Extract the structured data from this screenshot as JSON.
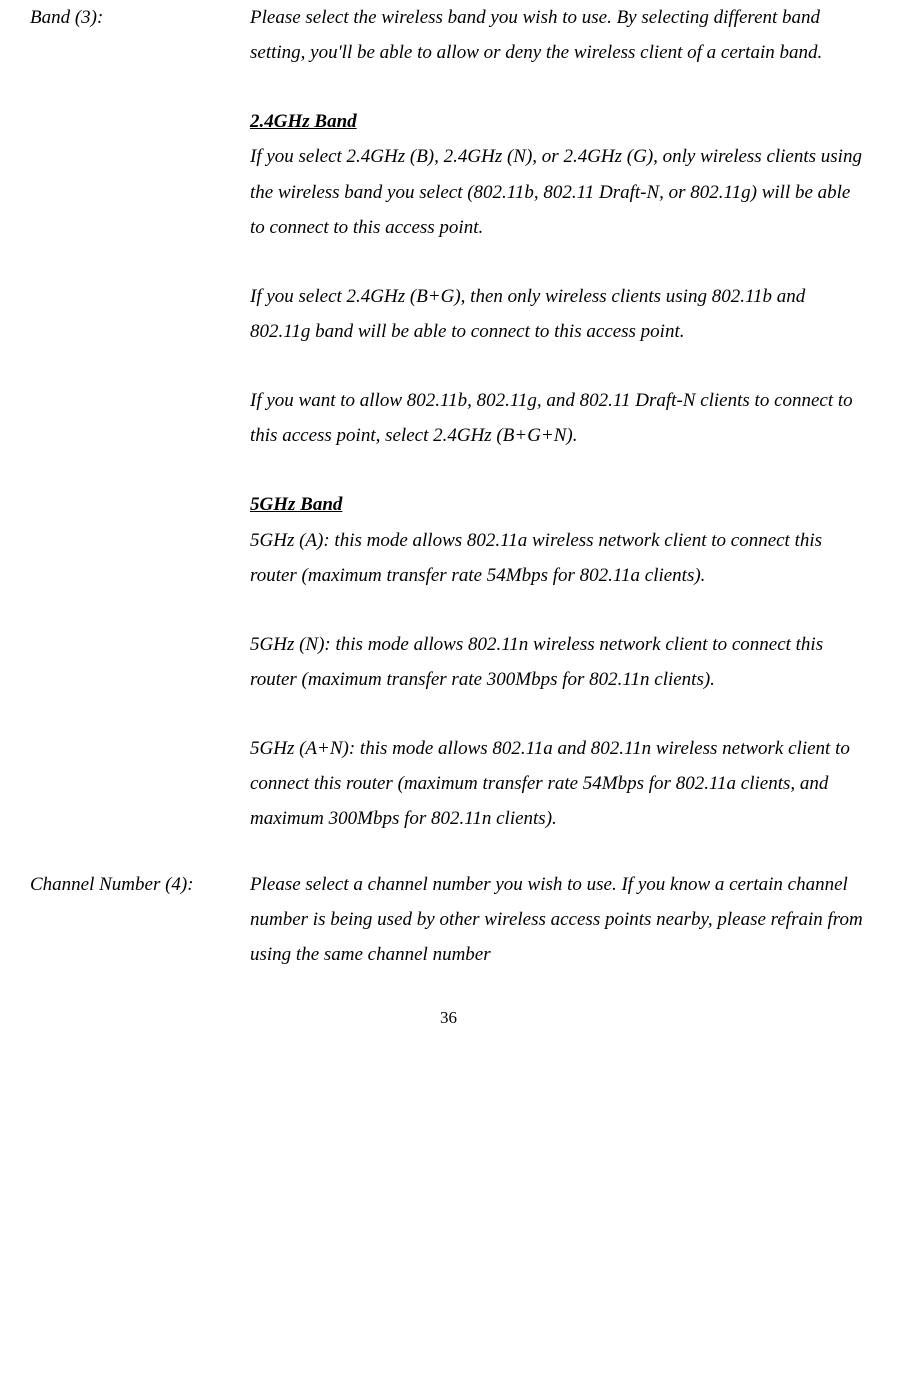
{
  "entries": [
    {
      "label": "Band (3):",
      "blocks": [
        {
          "type": "para",
          "text": "Please select the wireless band you wish to use. By selecting different band setting, you'll be able to allow or deny the wireless client of a certain band."
        },
        {
          "type": "subhead",
          "text": "2.4GHz Band"
        },
        {
          "type": "para",
          "text": "If you select 2.4GHz (B), 2.4GHz (N), or 2.4GHz (G), only wireless clients using the wireless band you select (802.11b, 802.11 Draft-N, or 802.11g) will be able to connect to this access point."
        },
        {
          "type": "para",
          "text": "If you select 2.4GHz (B+G), then only wireless clients using 802.11b and 802.11g band will be able to connect to this access point."
        },
        {
          "type": "para",
          "text": "If you want to allow 802.11b, 802.11g, and 802.11 Draft-N clients to connect to this access point, select 2.4GHz (B+G+N)."
        },
        {
          "type": "subhead",
          "text": "5GHz Band"
        },
        {
          "type": "para",
          "text": "5GHz (A): this mode allows 802.11a wireless network client to connect this router (maximum transfer rate 54Mbps for 802.11a clients)."
        },
        {
          "type": "para",
          "text": "5GHz (N): this mode allows 802.11n wireless network client to connect this router (maximum transfer rate 300Mbps for 802.11n clients)."
        },
        {
          "type": "para",
          "text": "5GHz (A+N): this mode allows 802.11a and 802.11n wireless network client to connect this router (maximum transfer rate 54Mbps for 802.11a clients, and maximum 300Mbps for 802.11n clients)."
        }
      ]
    },
    {
      "label": "Channel Number (4):",
      "blocks": [
        {
          "type": "para",
          "text": "Please select a channel number you wish to use. If you know a certain channel number is being used by other wireless access points nearby, please refrain from using the same channel number"
        }
      ]
    }
  ],
  "pageNumber": "36"
}
